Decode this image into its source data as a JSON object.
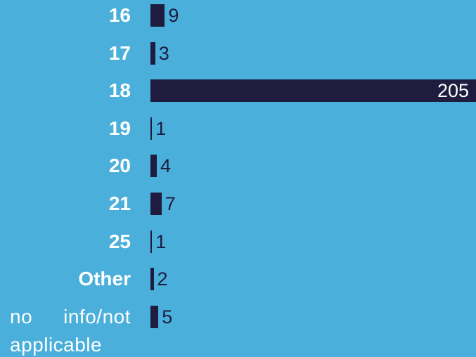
{
  "chart_data": {
    "type": "bar",
    "orientation": "horizontal",
    "categories": [
      "16",
      "17",
      "18",
      "19",
      "20",
      "21",
      "25",
      "Other",
      "no info/not applicable"
    ],
    "values": [
      9,
      3,
      205,
      1,
      4,
      7,
      1,
      2,
      5
    ],
    "color": "#1e1c3f"
  }
}
